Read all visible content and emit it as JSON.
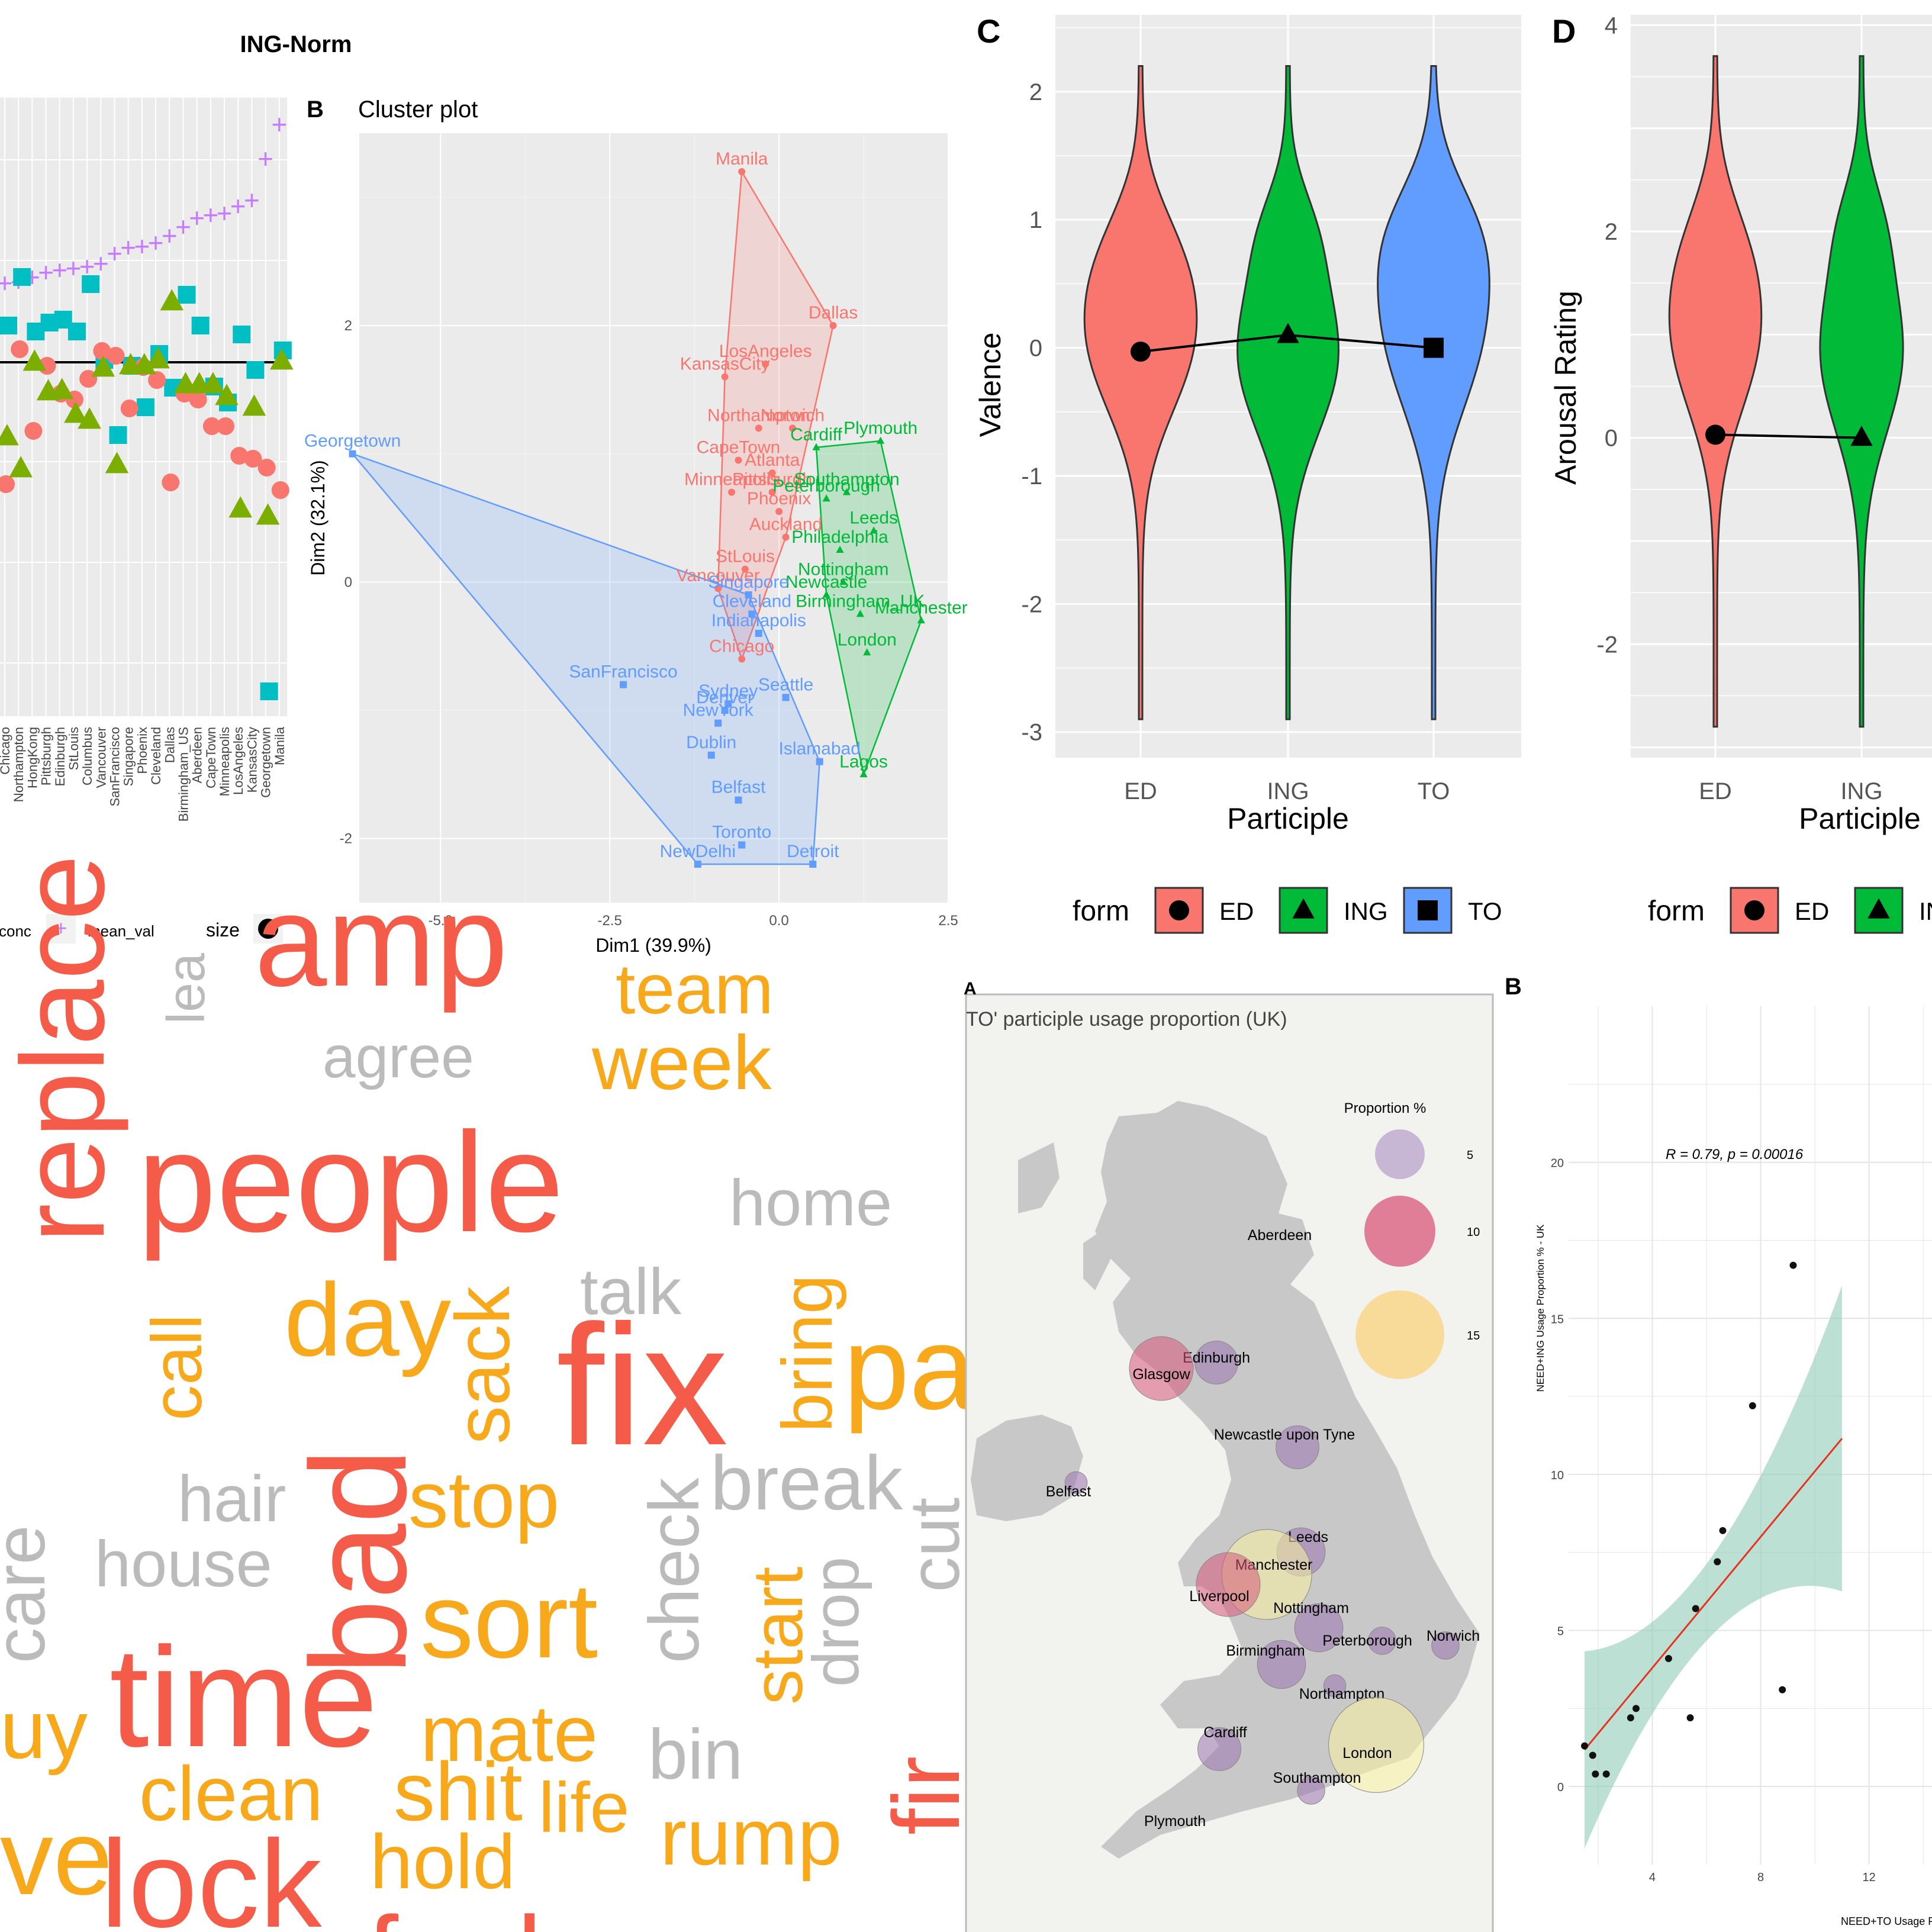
{
  "colors": {
    "panel_bg": "#ebebeb",
    "grid": "#ffffff",
    "ed": "#f8766d",
    "ing": "#00ba38",
    "to": "#619cff",
    "ing_tri": "#7cae00",
    "conc_sq": "#00bfc4",
    "mean_plus": "#c77cff",
    "word_red": "#f45b48",
    "word_orange": "#f7a81b",
    "word_grey": "#bbbbbb",
    "map_land": "#c8c8c8",
    "regression_line": "#e8311e",
    "ci_band": "#8fcdb7"
  },
  "chart_data": [
    {
      "id": "A",
      "type": "scatter",
      "title": "ING-Norm",
      "categories": [
        "Chicago",
        "Northampton",
        "HongKong",
        "Pittsburgh",
        "Edinburgh",
        "StLouis",
        "Columbus",
        "Vancouver",
        "SanFrancisco",
        "Singapore",
        "Phoenix",
        "Cleveland",
        "Dallas",
        "Birmingham_US",
        "Aberdeen",
        "CapeTown",
        "Minneapolis",
        "LosAngeles",
        "KansasCity",
        "Georgetown",
        "Manila"
      ],
      "legend": [
        {
          "label": "conc",
          "marker": "plus"
        },
        {
          "label": "mean_val",
          "marker": "plus"
        },
        {
          "label": "size",
          "marker": "dot"
        }
      ]
    },
    {
      "id": "B",
      "type": "scatter",
      "title": "Cluster plot",
      "xlabel": "Dim1 (39.9%)",
      "ylabel": "Dim2 (32.1%)",
      "xlim": [
        -6.2,
        2.5
      ],
      "ylim": [
        -2.5,
        3.5
      ],
      "xticks": [
        "-5.0",
        "-2.5",
        "0.0",
        "2.5"
      ],
      "yticks": [
        "-2",
        "0",
        "2"
      ],
      "series": [
        {
          "color": "ed",
          "marker": "circle",
          "points": [
            {
              "label": "Manila",
              "x": -0.55,
              "y": 3.2
            },
            {
              "label": "Dallas",
              "x": 0.8,
              "y": 2.0
            },
            {
              "label": "LosAngeles",
              "x": -0.2,
              "y": 1.7
            },
            {
              "label": "KansasCity",
              "x": -0.8,
              "y": 1.6
            },
            {
              "label": "Norwich",
              "x": 0.2,
              "y": 1.2
            },
            {
              "label": "Northampton",
              "x": -0.3,
              "y": 1.2
            },
            {
              "label": "CapeTown",
              "x": -0.6,
              "y": 0.95
            },
            {
              "label": "Atlanta",
              "x": -0.1,
              "y": 0.85
            },
            {
              "label": "Minneapolis",
              "x": -0.7,
              "y": 0.7
            },
            {
              "label": "Pittsburgh",
              "x": -0.1,
              "y": 0.7
            },
            {
              "label": "Phoenix",
              "x": 0.0,
              "y": 0.55
            },
            {
              "label": "Auckland",
              "x": 0.1,
              "y": 0.35
            },
            {
              "label": "StLouis",
              "x": -0.5,
              "y": 0.1
            },
            {
              "label": "Vancouver",
              "x": -0.9,
              "y": -0.05
            },
            {
              "label": "Chicago",
              "x": -0.55,
              "y": -0.6
            }
          ]
        },
        {
          "color": "ing",
          "marker": "triangle",
          "points": [
            {
              "label": "Cardiff",
              "x": 0.55,
              "y": 1.05
            },
            {
              "label": "Plymouth",
              "x": 1.5,
              "y": 1.1
            },
            {
              "label": "Southampton",
              "x": 1.0,
              "y": 0.7
            },
            {
              "label": "Peterborough",
              "x": 0.7,
              "y": 0.65
            },
            {
              "label": "Leeds",
              "x": 1.4,
              "y": 0.4
            },
            {
              "label": "Philadelphia",
              "x": 0.9,
              "y": 0.25
            },
            {
              "label": "Nottingham",
              "x": 0.95,
              "y": 0.0
            },
            {
              "label": "Newcastle",
              "x": 0.7,
              "y": -0.1
            },
            {
              "label": "Birmingham_UK",
              "x": 1.2,
              "y": -0.25
            },
            {
              "label": "Manchester",
              "x": 2.1,
              "y": -0.3
            },
            {
              "label": "London",
              "x": 1.3,
              "y": -0.55
            },
            {
              "label": "Lagos",
              "x": 1.25,
              "y": -1.5
            }
          ]
        },
        {
          "color": "to",
          "marker": "square",
          "points": [
            {
              "label": "Georgetown",
              "x": -6.3,
              "y": 1.0
            },
            {
              "label": "Singapore",
              "x": -0.45,
              "y": -0.1
            },
            {
              "label": "Cleveland",
              "x": -0.4,
              "y": -0.25
            },
            {
              "label": "Indianapolis",
              "x": -0.3,
              "y": -0.4
            },
            {
              "label": "SanFrancisco",
              "x": -2.3,
              "y": -0.8
            },
            {
              "label": "Seattle",
              "x": 0.1,
              "y": -0.9
            },
            {
              "label": "Denver",
              "x": -0.8,
              "y": -1.0
            },
            {
              "label": "Sydney",
              "x": -0.75,
              "y": -0.95
            },
            {
              "label": "NewYork",
              "x": -0.9,
              "y": -1.1
            },
            {
              "label": "Dublin",
              "x": -1.0,
              "y": -1.35
            },
            {
              "label": "Islamabad",
              "x": 0.6,
              "y": -1.4
            },
            {
              "label": "Belfast",
              "x": -0.6,
              "y": -1.7
            },
            {
              "label": "Toronto",
              "x": -0.55,
              "y": -2.05
            },
            {
              "label": "NewDelhi",
              "x": -1.2,
              "y": -2.2
            },
            {
              "label": "Detroit",
              "x": 0.5,
              "y": -2.2
            }
          ]
        }
      ]
    },
    {
      "id": "C",
      "type": "violin",
      "xlabel": "Participle",
      "ylabel": "Valence",
      "categories": [
        "ED",
        "ING",
        "TO"
      ],
      "means": [
        -0.03,
        0.1,
        0.0
      ],
      "ylim": [
        -3.2,
        2.6
      ],
      "yticks": [
        "2",
        "1",
        "0",
        "-1",
        "-2",
        "-3"
      ],
      "legend_title": "form",
      "legend": [
        "ED",
        "ING",
        "TO"
      ]
    },
    {
      "id": "D",
      "type": "violin",
      "xlabel": "Participle",
      "ylabel": "Arousal Rating",
      "categories": [
        "ED",
        "ING"
      ],
      "means": [
        0.03,
        0.0
      ],
      "ylim": [
        -3.1,
        4.1
      ],
      "yticks": [
        "4",
        "2",
        "0",
        "-2"
      ],
      "legend_title": "form",
      "legend": [
        "ED",
        "ING"
      ]
    },
    {
      "id": "E",
      "type": "wordcloud",
      "words": [
        {
          "text": "amp",
          "color": "red"
        },
        {
          "text": "team",
          "color": "orange"
        },
        {
          "text": "lea",
          "color": "grey",
          "rotate": true
        },
        {
          "text": "agree",
          "color": "grey"
        },
        {
          "text": "week",
          "color": "orange"
        },
        {
          "text": "replace",
          "color": "red",
          "rotate": true
        },
        {
          "text": "people",
          "color": "red"
        },
        {
          "text": "home",
          "color": "grey"
        },
        {
          "text": "call",
          "color": "orange",
          "rotate": true
        },
        {
          "text": "day",
          "color": "orange"
        },
        {
          "text": "sack",
          "color": "orange",
          "rotate": true
        },
        {
          "text": "talk",
          "color": "grey"
        },
        {
          "text": "fix",
          "color": "red"
        },
        {
          "text": "bring",
          "color": "orange",
          "rotate": true
        },
        {
          "text": "pa",
          "color": "orange"
        },
        {
          "text": "bad",
          "color": "red",
          "rotate": true
        },
        {
          "text": "hair",
          "color": "grey"
        },
        {
          "text": "stop",
          "color": "orange"
        },
        {
          "text": "check",
          "color": "grey",
          "rotate": true
        },
        {
          "text": "break",
          "color": "grey"
        },
        {
          "text": "cut",
          "color": "grey",
          "rotate": true
        },
        {
          "text": "care",
          "color": "grey",
          "rotate": true
        },
        {
          "text": "house",
          "color": "grey"
        },
        {
          "text": "sort",
          "color": "orange"
        },
        {
          "text": "start",
          "color": "orange",
          "rotate": true
        },
        {
          "text": "drop",
          "color": "grey",
          "rotate": true
        },
        {
          "text": "uy",
          "color": "orange"
        },
        {
          "text": "time",
          "color": "red"
        },
        {
          "text": "mate",
          "color": "orange"
        },
        {
          "text": "bin",
          "color": "grey"
        },
        {
          "text": "fir",
          "color": "red",
          "rotate": true
        },
        {
          "text": "clean",
          "color": "orange"
        },
        {
          "text": "shit",
          "color": "orange"
        },
        {
          "text": "life",
          "color": "orange"
        },
        {
          "text": "rump",
          "color": "orange"
        },
        {
          "text": "ve",
          "color": "orange"
        },
        {
          "text": "lock",
          "color": "red"
        },
        {
          "text": "hold",
          "color": "orange"
        },
        {
          "text": "fuck",
          "color": "red"
        }
      ]
    },
    {
      "id": "F",
      "type": "map",
      "title": "TO' participle usage proportion (UK)",
      "legend_title": "Proportion %",
      "legend": [
        {
          "value": "5",
          "color": "#b8a3cc"
        },
        {
          "value": "10",
          "color": "#d9577a"
        },
        {
          "value": "15",
          "color": "#f9d27c"
        }
      ],
      "cities": [
        {
          "name": "Aberdeen",
          "value": null
        },
        {
          "name": "Edinburgh",
          "value": 6
        },
        {
          "name": "Glasgow",
          "value": 10
        },
        {
          "name": "Newcastle upon Tyne",
          "value": 6
        },
        {
          "name": "Belfast",
          "value": 2
        },
        {
          "name": "Leeds",
          "value": 7
        },
        {
          "name": "Manchester",
          "value": 15
        },
        {
          "name": "Liverpool",
          "value": 10
        },
        {
          "name": "Nottingham",
          "value": 7
        },
        {
          "name": "Peterborough",
          "value": 3
        },
        {
          "name": "Norwich",
          "value": 3
        },
        {
          "name": "Birmingham",
          "value": 7
        },
        {
          "name": "Northampton",
          "value": 2
        },
        {
          "name": "Cardiff",
          "value": 6
        },
        {
          "name": "London",
          "value": 16
        },
        {
          "name": "Southampton",
          "value": 3
        },
        {
          "name": "Plymouth",
          "value": null
        }
      ]
    },
    {
      "id": "G",
      "type": "scatter",
      "annotation": "R = 0.79, p = 0.00016",
      "xlabel": "NEED+TO Usage P",
      "ylabel": "NEED+ING Usage Proportion % - UK",
      "xticks": [
        "4",
        "8",
        "12"
      ],
      "yticks": [
        "0",
        "5",
        "10",
        "15",
        "20"
      ],
      "points": [
        [
          1.5,
          1.3
        ],
        [
          1.8,
          1.0
        ],
        [
          1.9,
          0.4
        ],
        [
          2.3,
          0.4
        ],
        [
          3.2,
          2.2
        ],
        [
          3.4,
          2.5
        ],
        [
          4.6,
          4.1
        ],
        [
          5.4,
          2.2
        ],
        [
          5.6,
          5.7
        ],
        [
          6.4,
          7.2
        ],
        [
          6.6,
          8.2
        ],
        [
          7.7,
          12.2
        ],
        [
          8.8,
          3.1
        ],
        [
          9.2,
          16.7
        ]
      ],
      "fit": {
        "slope": 1.05,
        "intercept": -0.4
      }
    }
  ],
  "labels": {
    "panel_b_letter": "B",
    "panel_c_letter": "C",
    "panel_d_letter": "D",
    "panel_g_letter": "B",
    "panel_f_letter": "A"
  }
}
